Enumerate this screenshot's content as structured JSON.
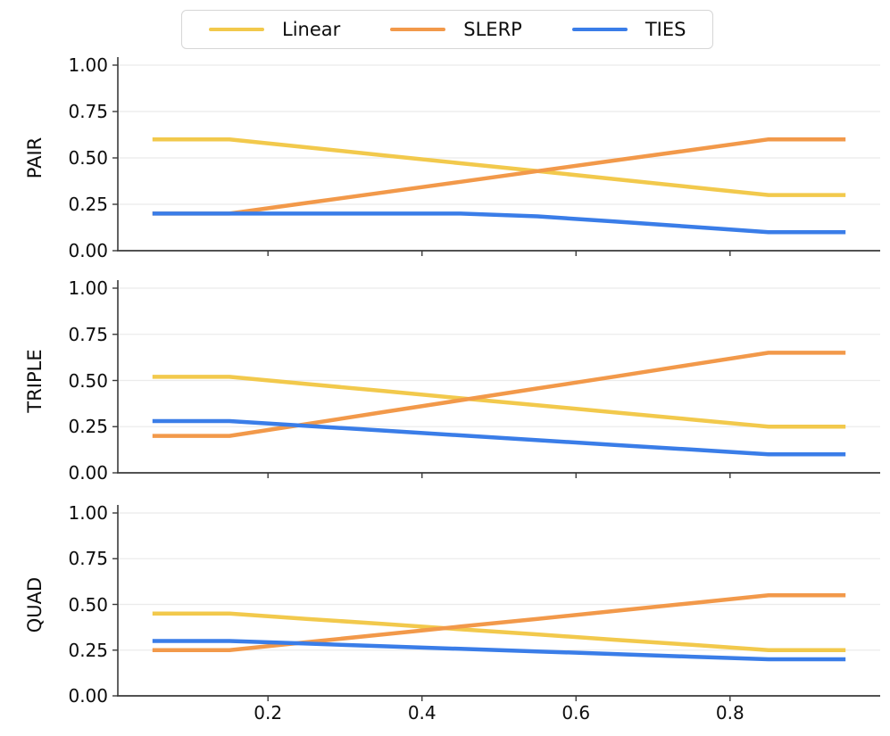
{
  "chart_data": {
    "type": "line",
    "title": "",
    "xlabel": "",
    "x": [
      0.05,
      0.15,
      0.25,
      0.35,
      0.45,
      0.55,
      0.65,
      0.75,
      0.85,
      0.95
    ],
    "xlim": [
      0.005,
      0.995
    ],
    "ylim": [
      0.0,
      1.045
    ],
    "grid": "horizontal",
    "x_ticks": {
      "values": [
        0.2,
        0.4,
        0.6,
        0.8
      ],
      "labels": [
        "0.2",
        "0.4",
        "0.6",
        "0.8"
      ]
    },
    "y_ticks": {
      "values": [
        0.0,
        0.25,
        0.5,
        0.75,
        1.0
      ],
      "labels": [
        "0.00",
        "0.25",
        "0.50",
        "0.75",
        "1.00"
      ]
    },
    "legend": {
      "position": "top",
      "entries": [
        {
          "label": "Linear",
          "color": "#F2C94C"
        },
        {
          "label": "SLERP",
          "color": "#F2994A"
        },
        {
          "label": "TIES",
          "color": "#3A7DE8"
        }
      ]
    },
    "subplots": [
      {
        "row_label": "PAIR",
        "series": [
          {
            "name": "Linear",
            "color": "#F2C94C",
            "values": [
              0.6,
              0.6,
              0.557,
              0.514,
              0.471,
              0.429,
              0.386,
              0.343,
              0.3,
              0.3
            ]
          },
          {
            "name": "SLERP",
            "color": "#F2994A",
            "values": [
              0.2,
              0.2,
              0.257,
              0.314,
              0.371,
              0.429,
              0.486,
              0.543,
              0.6,
              0.6
            ]
          },
          {
            "name": "TIES",
            "color": "#3A7DE8",
            "values": [
              0.2,
              0.2,
              0.2,
              0.2,
              0.2,
              0.185,
              0.157,
              0.129,
              0.1,
              0.1
            ]
          }
        ]
      },
      {
        "row_label": "TRIPLE",
        "series": [
          {
            "name": "Linear",
            "color": "#F2C94C",
            "values": [
              0.52,
              0.52,
              0.481,
              0.443,
              0.404,
              0.366,
              0.327,
              0.289,
              0.25,
              0.25
            ]
          },
          {
            "name": "SLERP",
            "color": "#F2994A",
            "values": [
              0.2,
              0.2,
              0.264,
              0.329,
              0.393,
              0.457,
              0.521,
              0.586,
              0.65,
              0.65
            ]
          },
          {
            "name": "TIES",
            "color": "#3A7DE8",
            "values": [
              0.28,
              0.28,
              0.254,
              0.229,
              0.203,
              0.177,
              0.151,
              0.126,
              0.1,
              0.1
            ]
          }
        ]
      },
      {
        "row_label": "QUAD",
        "series": [
          {
            "name": "Linear",
            "color": "#F2C94C",
            "values": [
              0.45,
              0.45,
              0.421,
              0.393,
              0.364,
              0.336,
              0.307,
              0.279,
              0.25,
              0.25
            ]
          },
          {
            "name": "SLERP",
            "color": "#F2994A",
            "values": [
              0.25,
              0.25,
              0.293,
              0.336,
              0.379,
              0.421,
              0.464,
              0.507,
              0.55,
              0.55
            ]
          },
          {
            "name": "TIES",
            "color": "#3A7DE8",
            "values": [
              0.3,
              0.3,
              0.286,
              0.271,
              0.257,
              0.243,
              0.229,
              0.214,
              0.2,
              0.2
            ]
          }
        ]
      }
    ],
    "style": {
      "grid_color": "#ebebeb",
      "spine_color": "#3a3a3a",
      "line_width": 4.5
    }
  }
}
